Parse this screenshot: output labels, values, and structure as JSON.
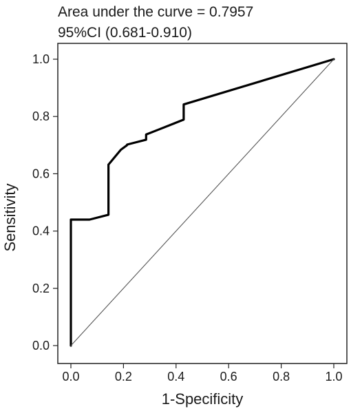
{
  "chart_data": {
    "type": "line",
    "title": "",
    "annotations": [
      "Area under the curve = 0.7957",
      "95%CI (0.681-0.910)"
    ],
    "xlabel": "1-Specificity",
    "ylabel": "Sensitivity",
    "xlim": [
      0,
      1
    ],
    "ylim": [
      0,
      1
    ],
    "xticks": [
      "0.0",
      "0.2",
      "0.4",
      "0.6",
      "0.8",
      "1.0"
    ],
    "yticks": [
      "0.0",
      "0.2",
      "0.4",
      "0.6",
      "0.8",
      "1.0"
    ],
    "grid": false,
    "legend": "none",
    "series": [
      {
        "x": [
          0.0,
          0.0,
          0.071,
          0.143,
          0.143,
          0.19,
          0.214,
          0.214,
          0.286,
          0.286,
          0.333,
          0.429,
          0.429,
          1.0
        ],
        "y": [
          0.0,
          0.44,
          0.44,
          0.457,
          0.632,
          0.684,
          0.7,
          0.702,
          0.719,
          0.737,
          0.754,
          0.789,
          0.842,
          1.0
        ],
        "color": "#000000"
      },
      {
        "x": [
          0.0,
          1.0
        ],
        "y": [
          0.0,
          1.0
        ],
        "color": "#555555"
      }
    ]
  }
}
